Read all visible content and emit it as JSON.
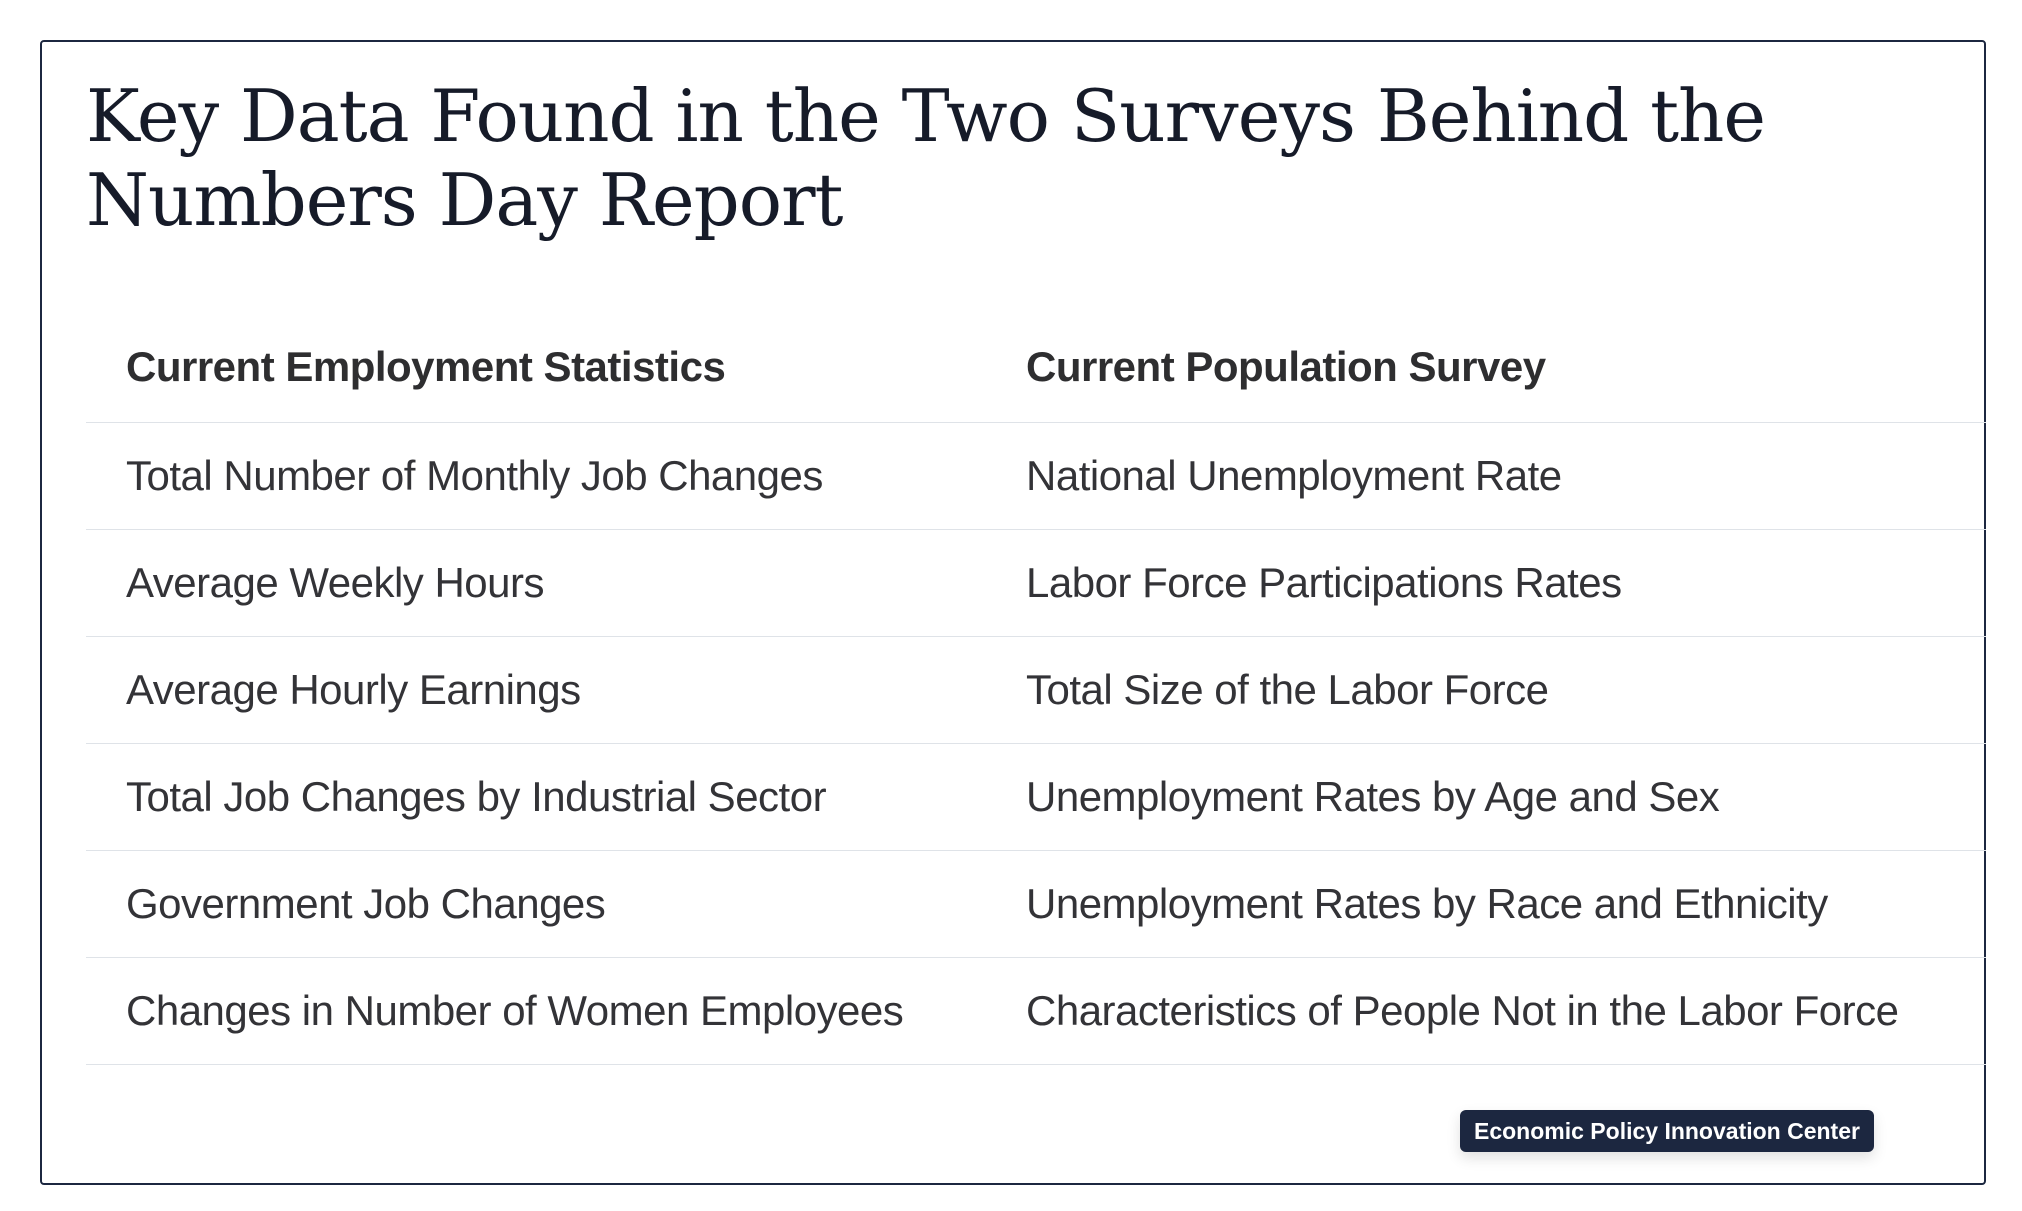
{
  "title": "Key Data Found in the Two Surveys Behind the Numbers Day Report",
  "table": {
    "headers": [
      "Current Employment Statistics",
      "Current Population Survey"
    ],
    "rows": [
      [
        "Total Number of Monthly Job Changes",
        "National Unemployment Rate"
      ],
      [
        "Average Weekly Hours",
        "Labor Force Participations Rates"
      ],
      [
        "Average Hourly Earnings",
        "Total Size of the Labor Force"
      ],
      [
        "Total Job Changes by Industrial Sector",
        "Unemployment Rates by Age and Sex"
      ],
      [
        "Government Job Changes",
        "Unemployment Rates by Race and Ethnicity"
      ],
      [
        "Changes in Number of Women Employees",
        "Characteristics of People Not in the Labor Force"
      ]
    ]
  },
  "source_badge": "Economic Policy Innovation Center",
  "colors": {
    "border": "#1c2740",
    "title": "#161b29",
    "badge_bg": "#1c2740",
    "row_divider": "#dfe3e8"
  }
}
